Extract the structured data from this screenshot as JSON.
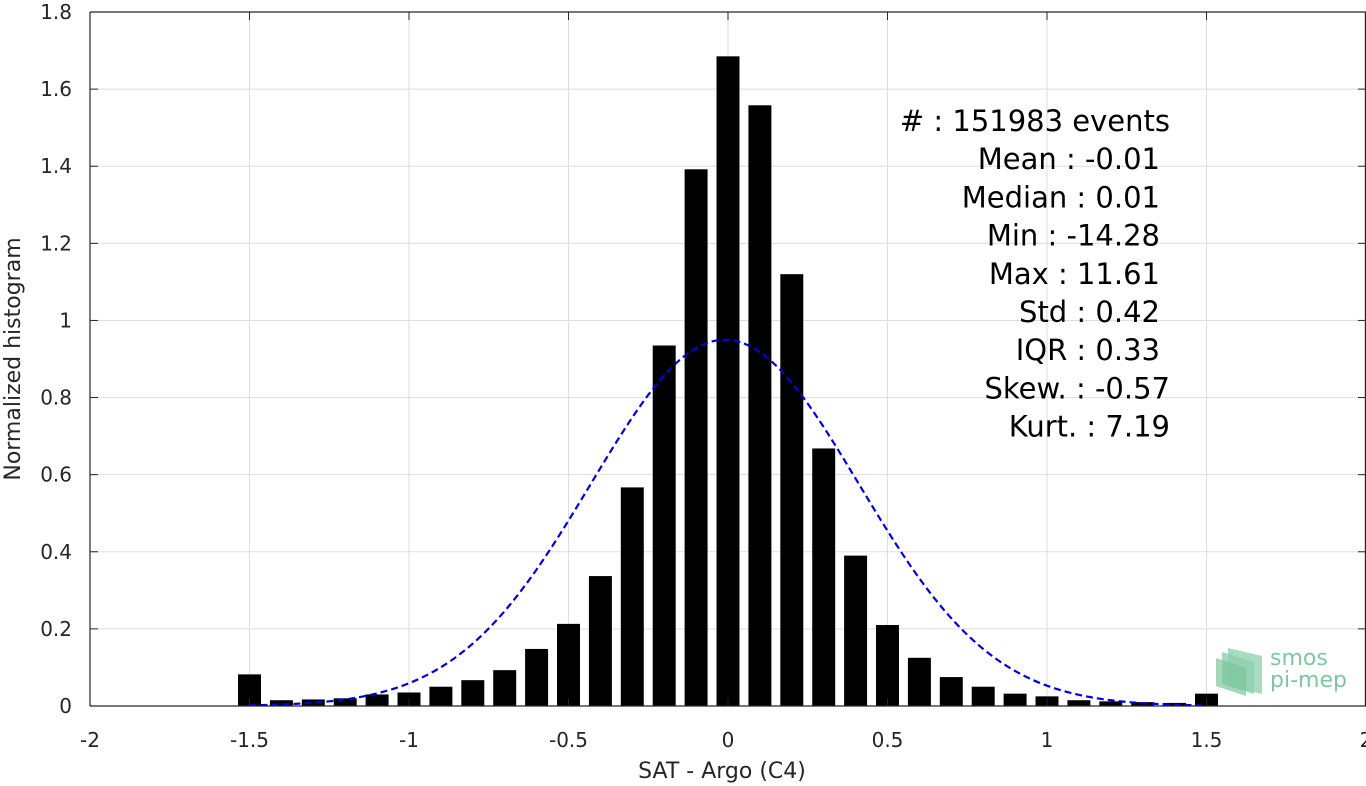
{
  "chart_data": {
    "type": "bar",
    "xlabel": "SAT - Argo (C4)",
    "ylabel": "Normalized histogram",
    "xlim": [
      -2,
      2
    ],
    "ylim": [
      0,
      1.8
    ],
    "grid": true,
    "x_ticks": [
      "-2",
      "-1.5",
      "-1",
      "-0.5",
      "0",
      "0.5",
      "1",
      "1.5",
      "2"
    ],
    "y_ticks": [
      "0",
      "0.2",
      "0.4",
      "0.6",
      "0.8",
      "1",
      "1.2",
      "1.4",
      "1.6",
      "1.8"
    ],
    "bins": {
      "centers": [
        -1.5,
        -1.4,
        -1.3,
        -1.2,
        -1.1,
        -1.0,
        -0.9,
        -0.8,
        -0.7,
        -0.6,
        -0.5,
        -0.4,
        -0.3,
        -0.2,
        -0.1,
        0.0,
        0.1,
        0.2,
        0.3,
        0.4,
        0.5,
        0.6,
        0.7,
        0.8,
        0.9,
        1.0,
        1.1,
        1.2,
        1.3,
        1.4,
        1.5
      ],
      "values": [
        0.082,
        0.015,
        0.017,
        0.02,
        0.03,
        0.035,
        0.05,
        0.067,
        0.093,
        0.148,
        0.213,
        0.337,
        0.567,
        0.935,
        1.392,
        1.685,
        1.558,
        1.12,
        0.668,
        0.39,
        0.21,
        0.125,
        0.075,
        0.05,
        0.032,
        0.025,
        0.015,
        0.012,
        0.01,
        0.008,
        0.032
      ],
      "bar_color": "#000000"
    },
    "fit_curve": {
      "type": "gaussian",
      "mean": -0.01,
      "std": 0.42,
      "x_range": [
        -1.5,
        1.5
      ],
      "style": "dashed",
      "color": "#0000dd"
    },
    "stats_lines": [
      "#  : 151983 events",
      "Mean : -0.01",
      "Median : 0.01",
      "Min : -14.28",
      "Max : 11.61",
      "Std : 0.42",
      "IQR : 0.33",
      "Skew. : -0.57",
      "Kurt. : 7.19"
    ],
    "logo": [
      "smos",
      "pi-mep"
    ]
  }
}
